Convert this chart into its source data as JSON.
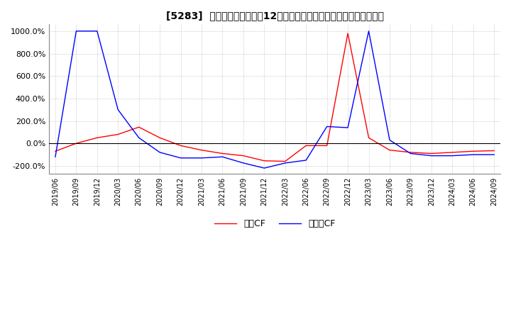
{
  "title": "[5283]  キャッシュフローの12か月移動合計の対前年同期増減率の推移",
  "legend_labels": [
    "営業CF",
    "フリーCF"
  ],
  "line_colors": [
    "#ff0000",
    "#0000ff"
  ],
  "ylim": [
    -270,
    1060
  ],
  "yticks": [
    -200,
    0,
    200,
    400,
    600,
    800,
    1000
  ],
  "ytick_labels": [
    "-200.0%",
    "0.0%",
    "200.0%",
    "400.0%",
    "600.0%",
    "800.0%",
    "1000.0%"
  ],
  "dates": [
    "2019/06",
    "2019/09",
    "2019/12",
    "2020/03",
    "2020/06",
    "2020/09",
    "2020/12",
    "2021/03",
    "2021/06",
    "2021/09",
    "2021/12",
    "2022/03",
    "2022/06",
    "2022/09",
    "2022/12",
    "2023/03",
    "2023/06",
    "2023/09",
    "2023/12",
    "2024/03",
    "2024/06",
    "2024/09"
  ],
  "operating_cf": [
    -70,
    0,
    50,
    80,
    145,
    50,
    -20,
    -60,
    -90,
    -110,
    -155,
    -160,
    -20,
    -20,
    980,
    50,
    -60,
    -80,
    -90,
    -80,
    -70,
    -65
  ],
  "free_cf": [
    -120,
    1000,
    1000,
    300,
    50,
    -80,
    -130,
    -130,
    -120,
    -175,
    -220,
    -175,
    -150,
    150,
    140,
    1000,
    30,
    -90,
    -110,
    -110,
    -100,
    -100
  ],
  "background_color": "#ffffff",
  "grid_color": "#cccccc",
  "grid_style": "dotted"
}
